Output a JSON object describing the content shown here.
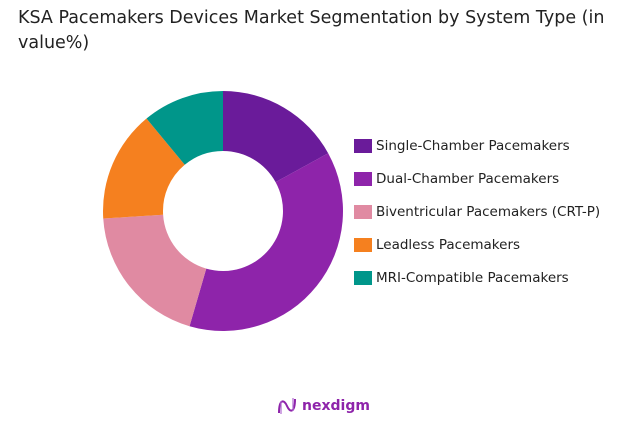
{
  "chart_data": {
    "type": "pie",
    "title": "KSA Pacemakers Devices Market Segmentation by System Type (in value%)",
    "donut": true,
    "categories": [
      "Single-Chamber Pacemakers",
      "Dual-Chamber Pacemakers",
      "Biventricular Pacemakers (CRT-P)",
      "Leadless Pacemakers",
      "MRI-Compatible Pacemakers"
    ],
    "values": [
      17,
      37.5,
      19.5,
      15,
      11
    ],
    "colors": [
      "#6a1b9a",
      "#8e24aa",
      "#e08aa2",
      "#f5801f",
      "#00968a"
    ],
    "legend_position": "right"
  },
  "logo": {
    "text": "nexdigm"
  }
}
